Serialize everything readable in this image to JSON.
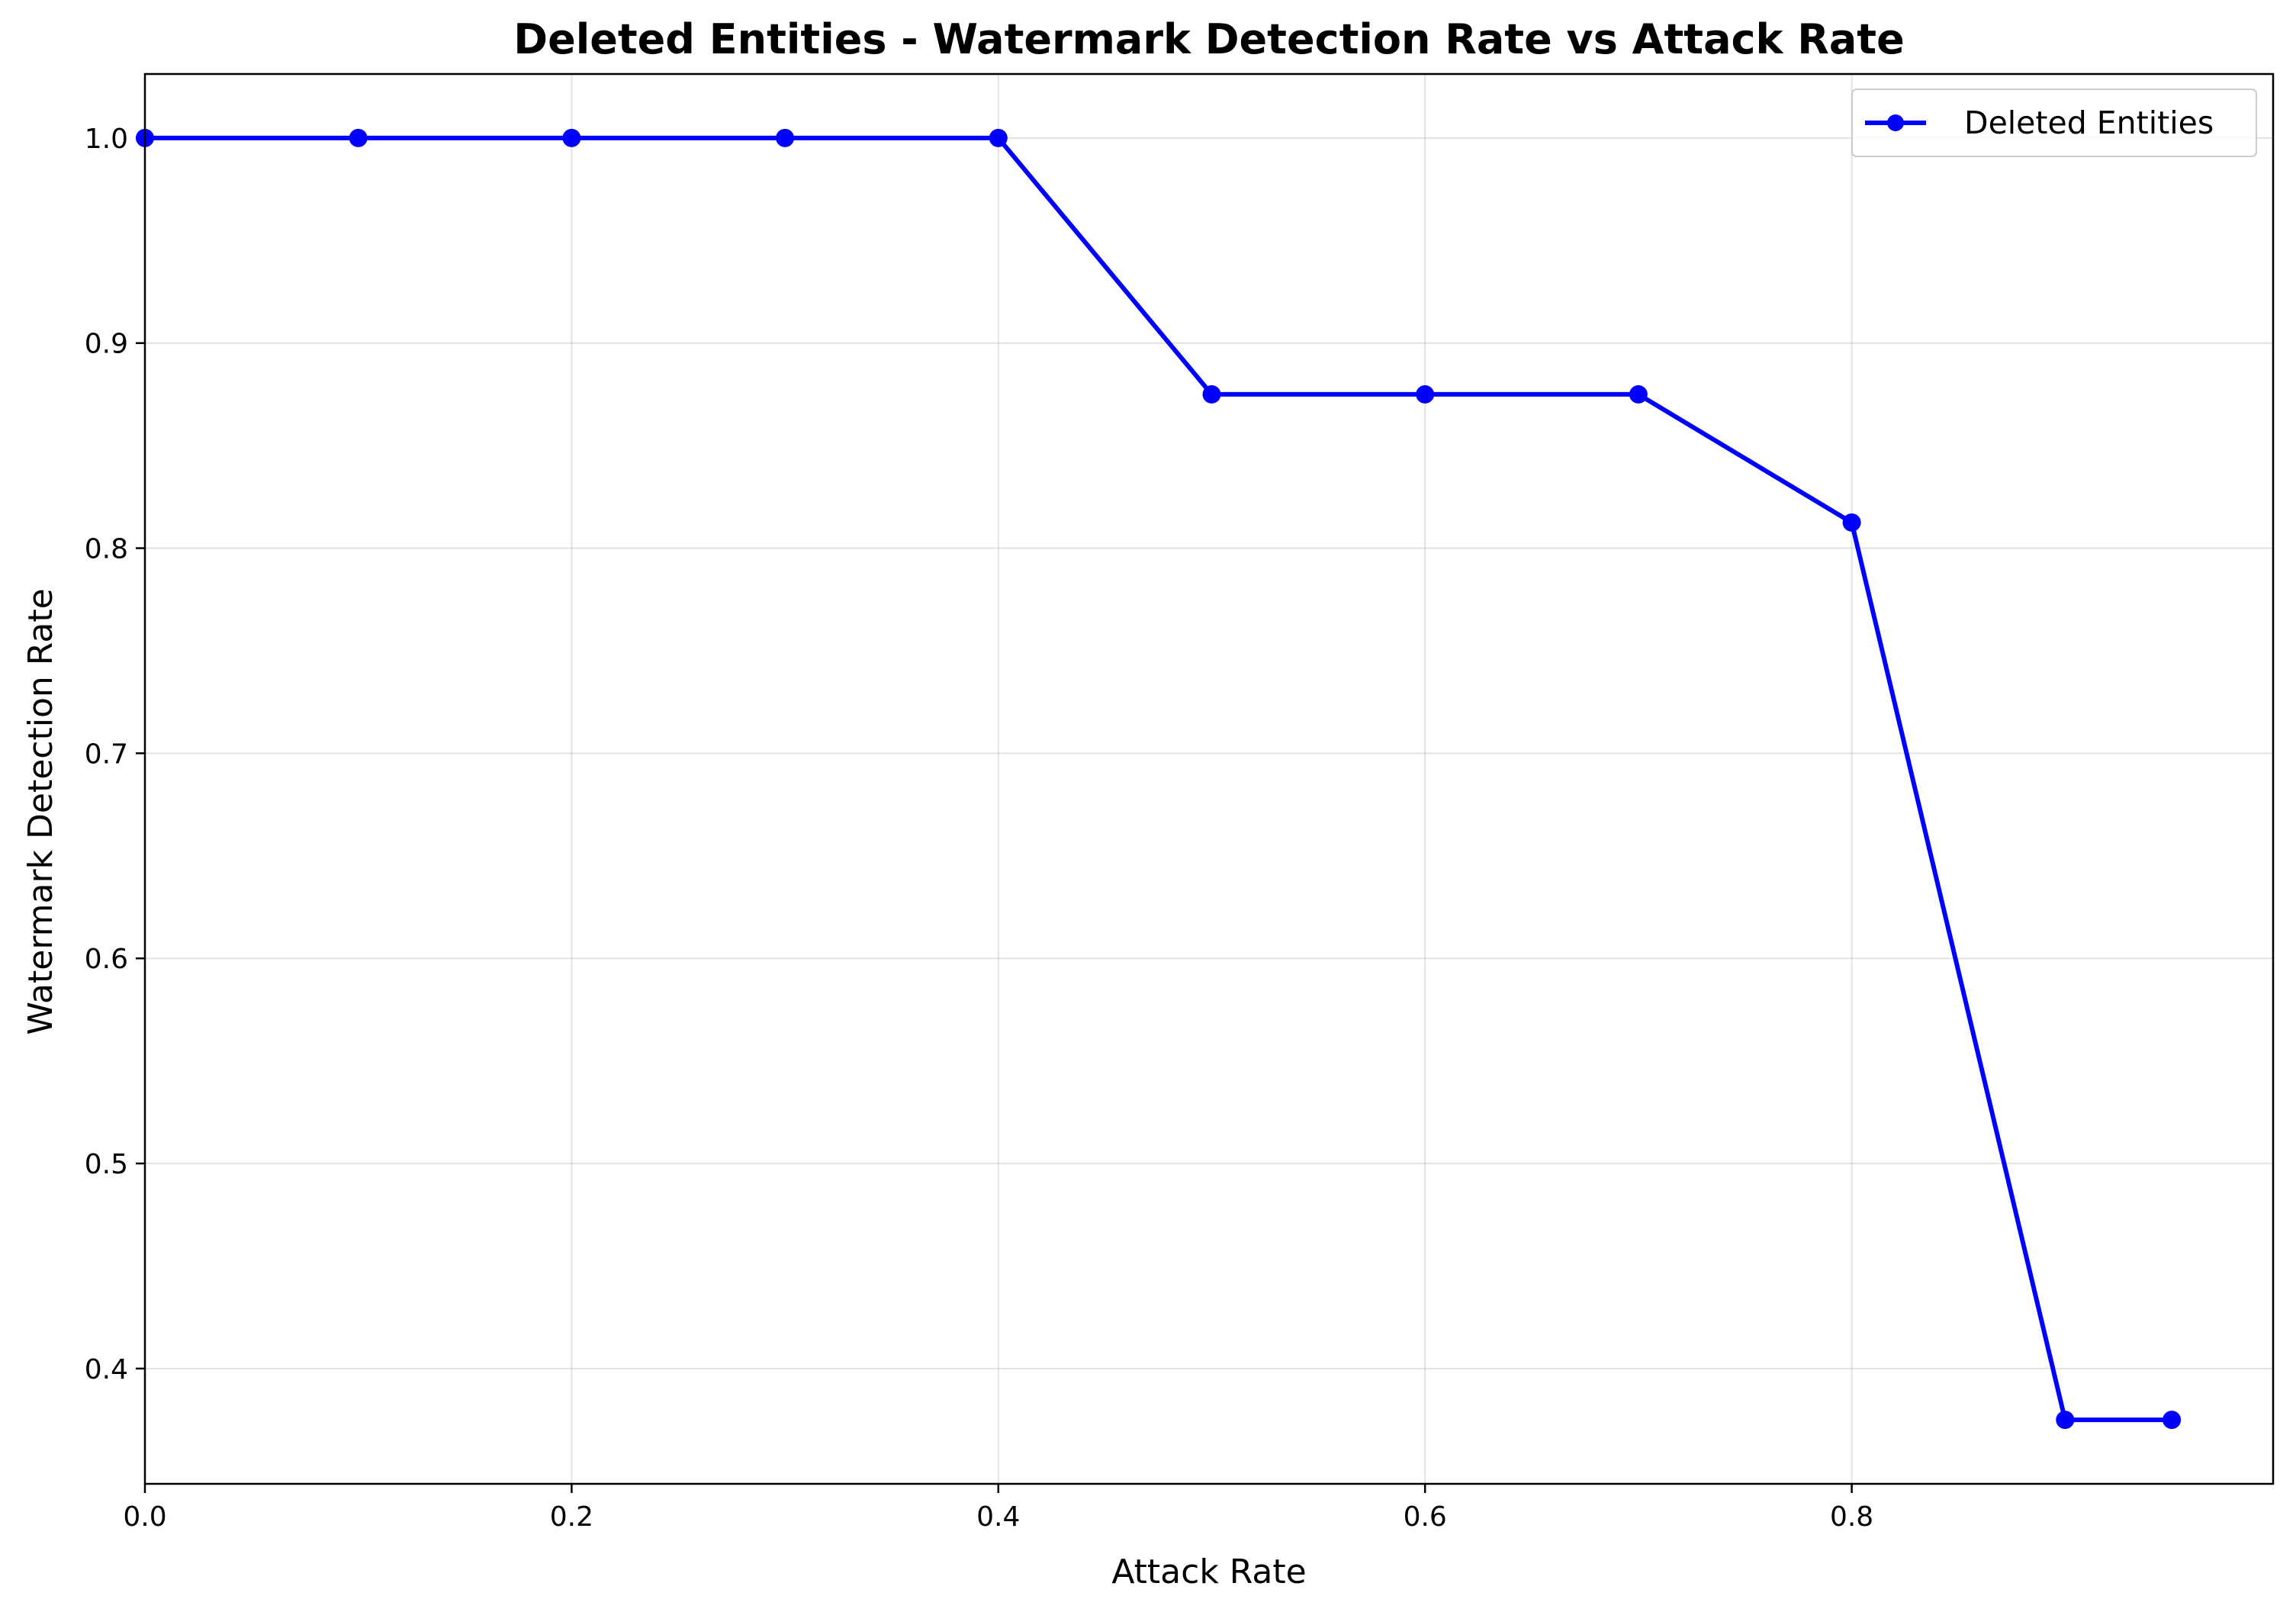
{
  "chart_data": {
    "type": "line",
    "title": "Deleted Entities - Watermark Detection Rate vs Attack Rate",
    "xlabel": "Attack Rate",
    "ylabel": "Watermark Detection Rate",
    "xlim": [
      0.0,
      0.9975
    ],
    "ylim": [
      0.3438,
      1.0312
    ],
    "xticks": [
      "0.0",
      "0.2",
      "0.4",
      "0.6",
      "0.8"
    ],
    "xtick_values": [
      0.0,
      0.2,
      0.4,
      0.6,
      0.8
    ],
    "yticks": [
      "0.4",
      "0.5",
      "0.6",
      "0.7",
      "0.8",
      "0.9",
      "1.0"
    ],
    "ytick_values": [
      0.4,
      0.5,
      0.6,
      0.7,
      0.8,
      0.9,
      1.0
    ],
    "grid": true,
    "legend_position": "top-right",
    "series": [
      {
        "name": "Deleted Entities",
        "color": "#0000ff",
        "marker": "circle",
        "x": [
          0.0,
          0.1,
          0.2,
          0.3,
          0.4,
          0.5,
          0.6,
          0.7,
          0.8,
          0.9,
          0.95
        ],
        "y": [
          1.0,
          1.0,
          1.0,
          1.0,
          1.0,
          0.875,
          0.875,
          0.875,
          0.8125,
          0.375,
          0.375
        ]
      }
    ]
  }
}
